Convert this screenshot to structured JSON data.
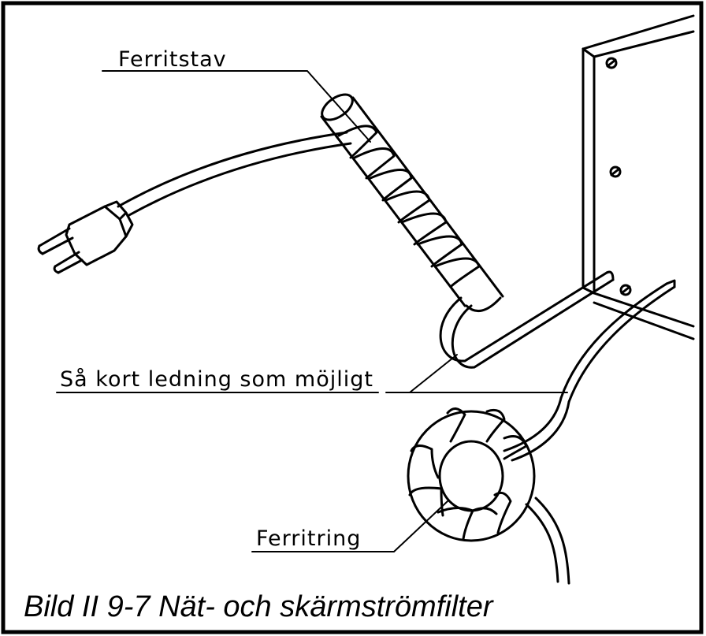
{
  "labels": {
    "ferrite_rod": "Ferritstav",
    "short_cable": "Så kort ledning som möjligt",
    "ferrite_ring": "Ferritring"
  },
  "caption": "Bild II 9-7  Nät- och skärmströmfilter"
}
